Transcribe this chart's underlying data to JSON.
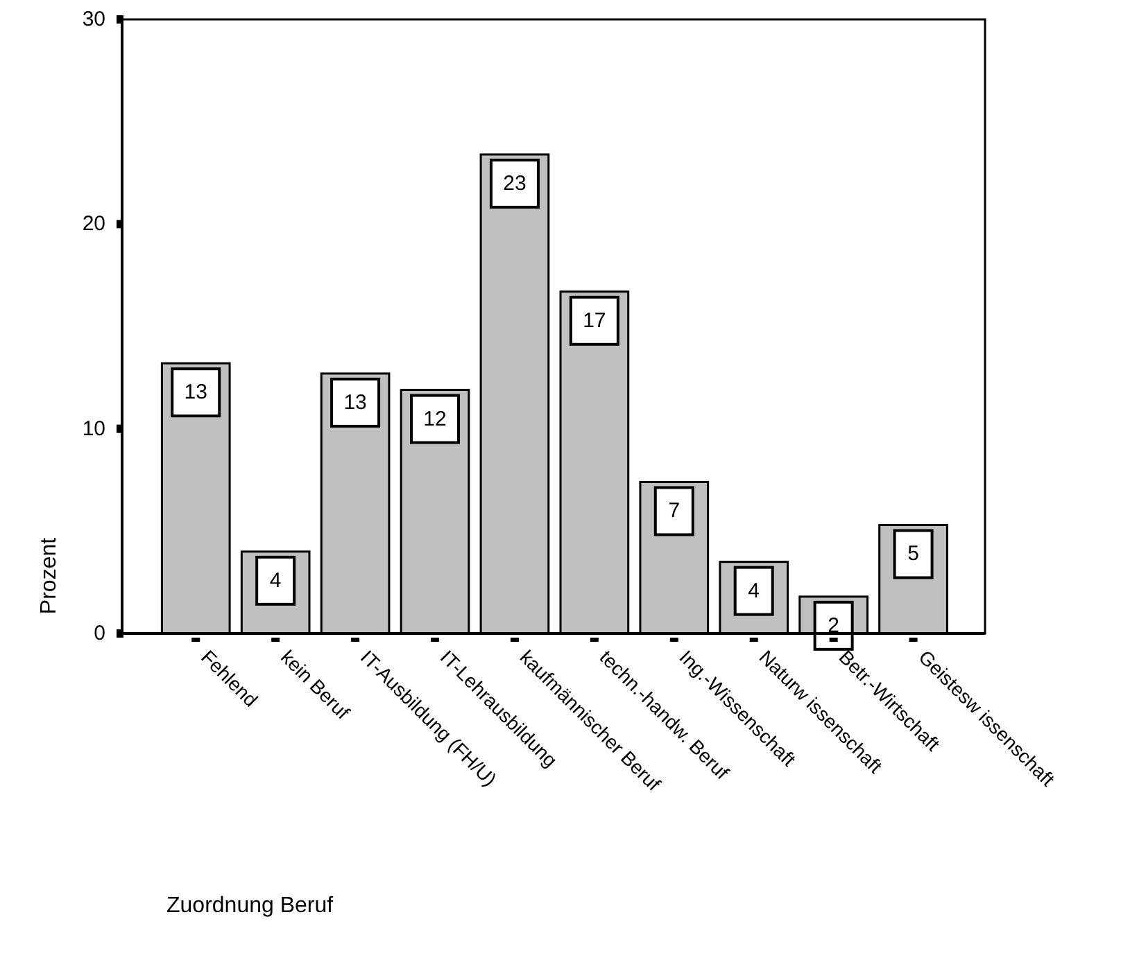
{
  "chart_data": {
    "type": "bar",
    "xlabel": "Zuordnung Beruf",
    "ylabel": "Prozent",
    "categories": [
      "Fehlend",
      "kein Beruf",
      "IT-Ausbildung (FH/U)",
      "IT-Lehrausbildung",
      "kaufmännischer Beruf",
      "techn.-handw. Beruf",
      "Ing.-Wissenschaft",
      "Naturw issenschaft",
      "Betr.-Wirtschaft",
      "Geistesw issenschaft"
    ],
    "values": [
      13.2,
      4.0,
      12.7,
      11.9,
      23.4,
      16.7,
      7.4,
      3.5,
      1.8,
      5.3
    ],
    "value_labels": [
      "13",
      "4",
      "13",
      "12",
      "23",
      "17",
      "7",
      "4",
      "2",
      "5"
    ],
    "color": "#c0c0c0",
    "ylim": [
      0,
      30
    ],
    "yticks": [
      0,
      10,
      20,
      30
    ],
    "grid": false
  }
}
